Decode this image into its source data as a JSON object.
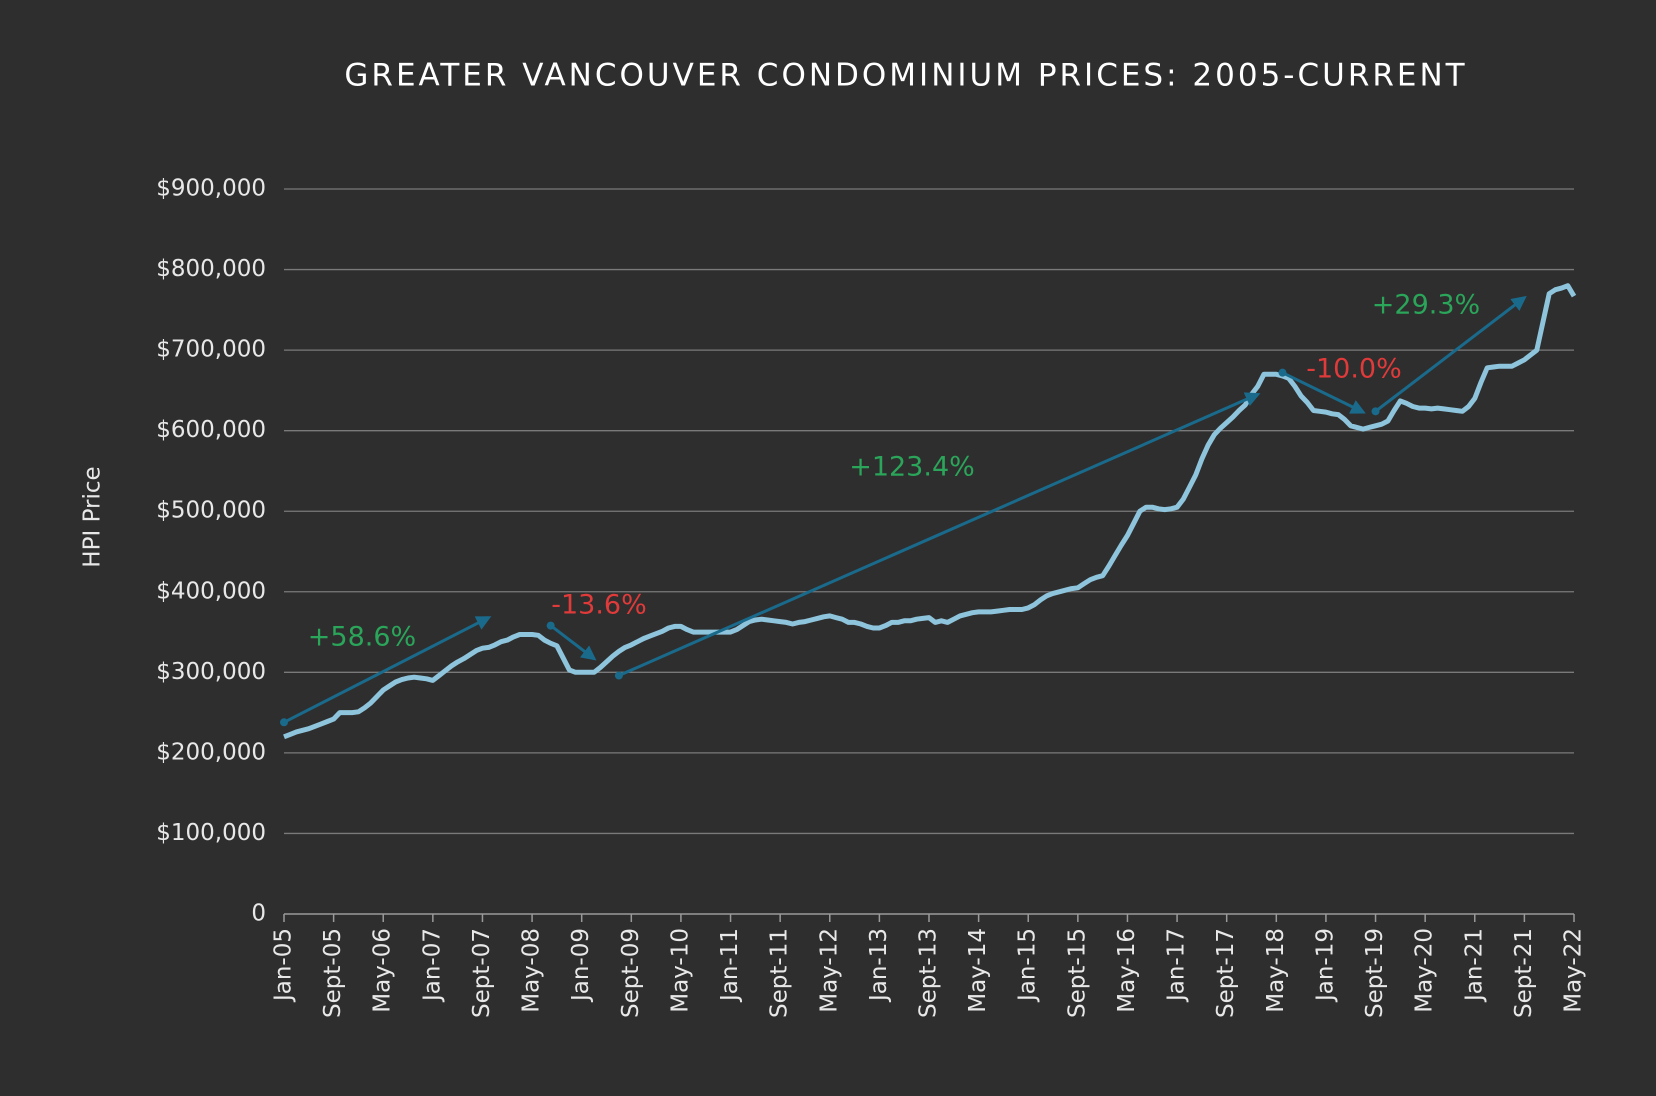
{
  "chart_data": {
    "type": "line",
    "title": "GREATER VANCOUVER CONDOMINIUM PRICES: 2005-CURRENT",
    "y_label": "HPI Price",
    "categories": [
      "Jan-05",
      null,
      null,
      null,
      null,
      null,
      null,
      null,
      "Sept-05",
      null,
      null,
      null,
      null,
      null,
      null,
      null,
      "May-06",
      null,
      null,
      null,
      null,
      null,
      null,
      null,
      "Jan-07",
      null,
      null,
      null,
      null,
      null,
      null,
      null,
      "Sept-07",
      null,
      null,
      null,
      null,
      null,
      null,
      null,
      "May-08",
      null,
      null,
      null,
      null,
      null,
      null,
      null,
      "Jan-09",
      null,
      null,
      null,
      null,
      null,
      null,
      null,
      "Sept-09",
      null,
      null,
      null,
      null,
      null,
      null,
      null,
      "May-10",
      null,
      null,
      null,
      null,
      null,
      null,
      null,
      "Jan-11",
      null,
      null,
      null,
      null,
      null,
      null,
      null,
      "Sept-11",
      null,
      null,
      null,
      null,
      null,
      null,
      null,
      "May-12",
      null,
      null,
      null,
      null,
      null,
      null,
      null,
      "Jan-13",
      null,
      null,
      null,
      null,
      null,
      null,
      null,
      "Sept-13",
      null,
      null,
      null,
      null,
      null,
      null,
      null,
      "May-14",
      null,
      null,
      null,
      null,
      null,
      null,
      null,
      "Jan-15",
      null,
      null,
      null,
      null,
      null,
      null,
      null,
      "Sept-15",
      null,
      null,
      null,
      null,
      null,
      null,
      null,
      "May-16",
      null,
      null,
      null,
      null,
      null,
      null,
      null,
      "Jan-17",
      null,
      null,
      null,
      null,
      null,
      null,
      null,
      "Sept-17",
      null,
      null,
      null,
      null,
      null,
      null,
      null,
      "May-18",
      null,
      null,
      null,
      null,
      null,
      null,
      null,
      "Jan-19",
      null,
      null,
      null,
      null,
      null,
      null,
      null,
      "Sept-19",
      null,
      null,
      null,
      null,
      null,
      null,
      null,
      "May-20",
      null,
      null,
      null,
      null,
      null,
      null,
      null,
      "Jan-21",
      null,
      null,
      null,
      null,
      null,
      null,
      null,
      "Sept-21",
      null,
      null,
      null,
      null,
      null,
      null,
      null,
      "May-22"
    ],
    "series": [
      {
        "name": "HPI Price",
        "color": "#8ec4dc",
        "values": [
          220000,
          223000,
          226000,
          228000,
          230000,
          233000,
          236000,
          239000,
          242000,
          250000,
          250000,
          250000,
          251000,
          256000,
          262000,
          270000,
          278000,
          283000,
          288000,
          291000,
          293000,
          294000,
          293000,
          292000,
          290000,
          296000,
          302000,
          308000,
          313000,
          317000,
          322000,
          327000,
          330000,
          331000,
          334000,
          338000,
          340000,
          344000,
          347000,
          347000,
          347000,
          346000,
          340000,
          336000,
          333000,
          318000,
          303000,
          300000,
          300000,
          300000,
          300000,
          306000,
          313000,
          320000,
          326000,
          331000,
          334000,
          338000,
          342000,
          345000,
          348000,
          351000,
          355000,
          357000,
          357000,
          353000,
          350000,
          350000,
          350000,
          350000,
          350000,
          350000,
          350000,
          353000,
          358000,
          363000,
          365000,
          366000,
          365000,
          364000,
          363000,
          362000,
          360000,
          362000,
          363000,
          365000,
          367000,
          369000,
          370000,
          368000,
          366000,
          362000,
          362000,
          360000,
          357000,
          355000,
          355000,
          358000,
          362000,
          362000,
          364000,
          364000,
          366000,
          367000,
          368000,
          362000,
          364000,
          362000,
          366000,
          370000,
          372000,
          374000,
          375000,
          375000,
          375000,
          376000,
          377000,
          378000,
          378000,
          378000,
          380000,
          384000,
          390000,
          395000,
          398000,
          400000,
          402000,
          404000,
          405000,
          410000,
          415000,
          418000,
          420000,
          432000,
          445000,
          458000,
          470000,
          485000,
          500000,
          505000,
          505000,
          503000,
          502000,
          503000,
          505000,
          515000,
          530000,
          545000,
          565000,
          582000,
          595000,
          603000,
          610000,
          617000,
          625000,
          632000,
          645000,
          655000,
          670000,
          670000,
          670000,
          668000,
          665000,
          655000,
          643000,
          635000,
          625000,
          624000,
          623000,
          621000,
          620000,
          614000,
          606000,
          604000,
          602000,
          604000,
          606000,
          608000,
          612000,
          625000,
          637000,
          634000,
          630000,
          628000,
          628000,
          627000,
          628000,
          627000,
          626000,
          625000,
          624000,
          630000,
          640000,
          660000,
          678000,
          679000,
          680000,
          680000,
          680000,
          684000,
          688000,
          694000,
          700000,
          735000,
          770000,
          775000,
          777000,
          780000,
          767000
        ]
      }
    ],
    "ylim": [
      0,
      900000
    ],
    "yticks": [
      0,
      {
        "value": 100000,
        "label": "$100,000"
      },
      {
        "value": 200000,
        "label": "$200,000"
      },
      {
        "value": 300000,
        "label": "$300,000"
      },
      {
        "value": 400000,
        "label": "$400,000"
      },
      {
        "value": 500000,
        "label": "$500,000"
      },
      {
        "value": 600000,
        "label": "$600,000"
      },
      {
        "value": 700000,
        "label": "$700,000"
      },
      {
        "value": 800000,
        "label": "$800,000"
      },
      {
        "value": 900000,
        "label": "$900,000"
      }
    ],
    "grid": true,
    "annotations": [
      {
        "text": "+58.6%",
        "color": "#2aa55a"
      },
      {
        "text": "-13.6%",
        "color": "#e03a3a"
      },
      {
        "text": "+123.4%",
        "color": "#2aa55a"
      },
      {
        "text": "-10.0%",
        "color": "#e03a3a"
      },
      {
        "text": "+29.3%",
        "color": "#2aa55a"
      }
    ],
    "arrow_color": "#1a6a8c"
  }
}
